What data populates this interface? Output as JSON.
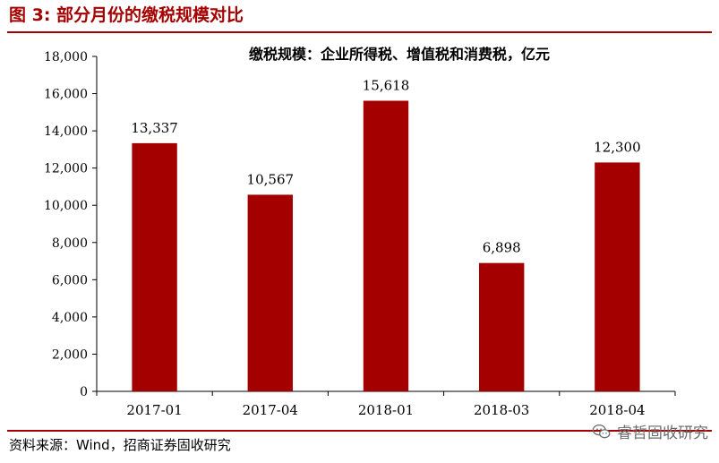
{
  "header": {
    "figure_title": "图 3:  部分月份的缴税规模对比"
  },
  "footer": {
    "source": "资料来源：Wind，招商证券固收研究",
    "watermark": "睿哲固收研究"
  },
  "colors": {
    "accent": "#a40000",
    "bar": "#a40000",
    "axis": "#000000"
  },
  "icons": {
    "watermark": "wechat-icon"
  },
  "chart_data": {
    "type": "bar",
    "title": "缴税规模：企业所得税、增值税和消费税，亿元",
    "categories": [
      "2017-01",
      "2017-04",
      "2018-01",
      "2018-03",
      "2018-04"
    ],
    "values": [
      13337,
      10567,
      15618,
      6898,
      12300
    ],
    "value_labels": [
      "13,337",
      "10,567",
      "15,618",
      "6,898",
      "12,300"
    ],
    "ylim": [
      0,
      18000
    ],
    "yticks": [
      0,
      2000,
      4000,
      6000,
      8000,
      10000,
      12000,
      14000,
      16000,
      18000
    ],
    "ytick_labels": [
      "0",
      "2,000",
      "4,000",
      "6,000",
      "8,000",
      "10,000",
      "12,000",
      "14,000",
      "16,000",
      "18,000"
    ],
    "grid": false,
    "legend": "none"
  }
}
